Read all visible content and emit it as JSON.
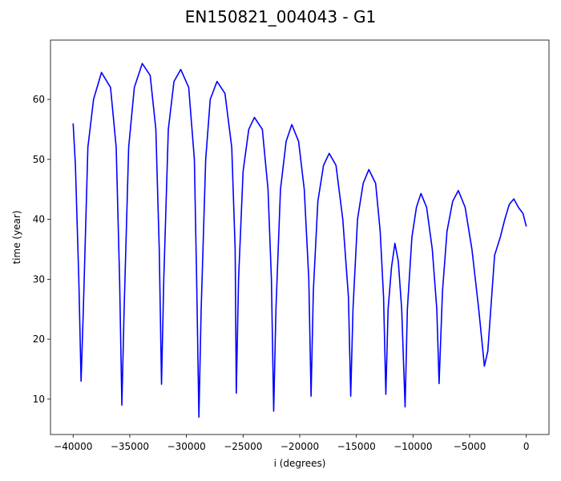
{
  "chart_data": {
    "type": "line",
    "title": "EN150821_004043 - G1",
    "xlabel": "i (degrees)",
    "ylabel": "time (year)",
    "color": "#0000ff",
    "xlim": [
      -42000,
      2000
    ],
    "ylim": [
      4.1,
      69.9
    ],
    "xticks": [
      {
        "value": -40000,
        "label": "−40000"
      },
      {
        "value": -35000,
        "label": "−35000"
      },
      {
        "value": -30000,
        "label": "−30000"
      },
      {
        "value": -25000,
        "label": "−25000"
      },
      {
        "value": -20000,
        "label": "−20000"
      },
      {
        "value": -15000,
        "label": "−15000"
      },
      {
        "value": -10000,
        "label": "−10000"
      },
      {
        "value": -5000,
        "label": "−5000"
      },
      0
    ],
    "yticks": [
      10,
      20,
      30,
      40,
      50,
      60
    ],
    "x": [
      -40000,
      -39800,
      -39500,
      -39300,
      -39100,
      -38700,
      -38200,
      -37500,
      -36700,
      -36200,
      -35900,
      -35700,
      -35500,
      -35100,
      -34600,
      -33900,
      -33200,
      -32700,
      -32400,
      -32200,
      -32000,
      -31600,
      -31100,
      -30500,
      -29800,
      -29300,
      -29100,
      -28900,
      -28700,
      -28300,
      -27900,
      -27300,
      -26600,
      -26000,
      -25700,
      -25600,
      -25400,
      -25000,
      -24500,
      -24000,
      -23300,
      -22800,
      -22500,
      -22300,
      -22100,
      -21700,
      -21200,
      -20700,
      -20100,
      -19600,
      -19200,
      -19000,
      -18800,
      -18400,
      -17900,
      -17400,
      -16800,
      -16200,
      -15700,
      -15500,
      -15300,
      -14900,
      -14400,
      -13900,
      -13300,
      -12900,
      -12600,
      -12400,
      -12200,
      -11900,
      -11600,
      -11300,
      -11000,
      -10700,
      -10500,
      -10100,
      -9700,
      -9300,
      -8800,
      -8300,
      -7900,
      -7700,
      -7400,
      -7000,
      -6500,
      -6000,
      -5400,
      -4800,
      -4200,
      -3700,
      -3400,
      -3100,
      -2800,
      -2300,
      -1900,
      -1500,
      -1100,
      -700,
      -300,
      0
    ],
    "values": [
      56,
      49,
      30,
      13,
      25,
      52,
      60,
      64.5,
      62,
      52,
      30,
      9,
      25,
      52,
      62,
      66,
      64,
      55,
      35,
      12.5,
      30,
      55,
      63,
      65,
      62,
      50,
      30,
      7,
      25,
      50,
      60,
      63,
      61,
      52,
      35,
      11,
      30,
      48,
      55,
      57,
      55,
      45,
      30,
      8,
      25,
      45,
      53,
      55.8,
      53,
      45,
      30,
      10.5,
      28,
      43,
      49,
      51,
      49,
      40,
      27,
      10.5,
      25,
      40,
      46,
      48.3,
      46,
      38,
      27,
      10.8,
      25,
      32,
      36,
      33,
      25,
      8.7,
      25,
      37,
      42,
      44.3,
      42,
      35,
      25,
      12.6,
      28,
      38,
      43,
      44.8,
      42,
      35,
      25,
      15.5,
      18,
      26,
      34,
      37,
      40,
      42.5,
      43.4,
      42,
      41,
      38.8
    ]
  }
}
